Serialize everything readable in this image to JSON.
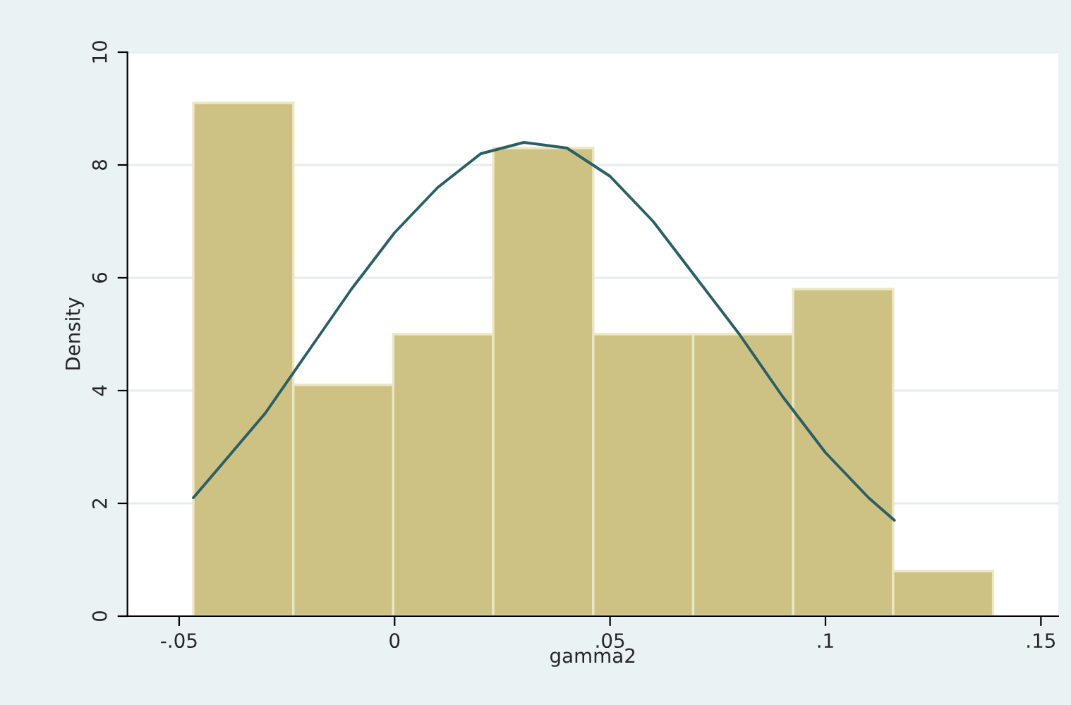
{
  "chart_data": {
    "type": "histogram",
    "xlabel": "gamma2",
    "ylabel": "Density",
    "bins": [
      -0.0467,
      -0.0235,
      -0.0003,
      0.0229,
      0.0461,
      0.0693,
      0.0925,
      0.1157,
      0.1389
    ],
    "values": [
      9.1,
      4.1,
      5.0,
      8.3,
      5.0,
      5.0,
      5.8,
      0.8
    ],
    "color": "#cdc283",
    "series": [
      {
        "type": "line",
        "color": "#2a5f63",
        "x": [
          -0.0467,
          -0.04,
          -0.03,
          -0.02,
          -0.01,
          0,
          0.01,
          0.02,
          0.03,
          0.04,
          0.05,
          0.06,
          0.07,
          0.08,
          0.09,
          0.1,
          0.11,
          0.116
        ],
        "values": [
          2.1,
          2.7,
          3.6,
          4.7,
          5.8,
          6.8,
          7.6,
          8.2,
          8.4,
          8.3,
          7.8,
          7.0,
          6.0,
          5.0,
          3.9,
          2.9,
          2.1,
          1.7
        ]
      }
    ],
    "xlim": [
      -0.062,
      0.154
    ],
    "ylim": [
      0,
      10
    ],
    "xticks": [
      {
        "value": -0.05,
        "label": "-.05"
      },
      0,
      {
        "value": 0.05,
        "label": ".05"
      },
      {
        "value": 0.1,
        "label": ".1"
      },
      {
        "value": 0.15,
        "label": ".15"
      }
    ],
    "yticks": [
      0,
      2,
      4,
      6,
      8,
      10
    ],
    "grid": "y",
    "legend": false
  }
}
